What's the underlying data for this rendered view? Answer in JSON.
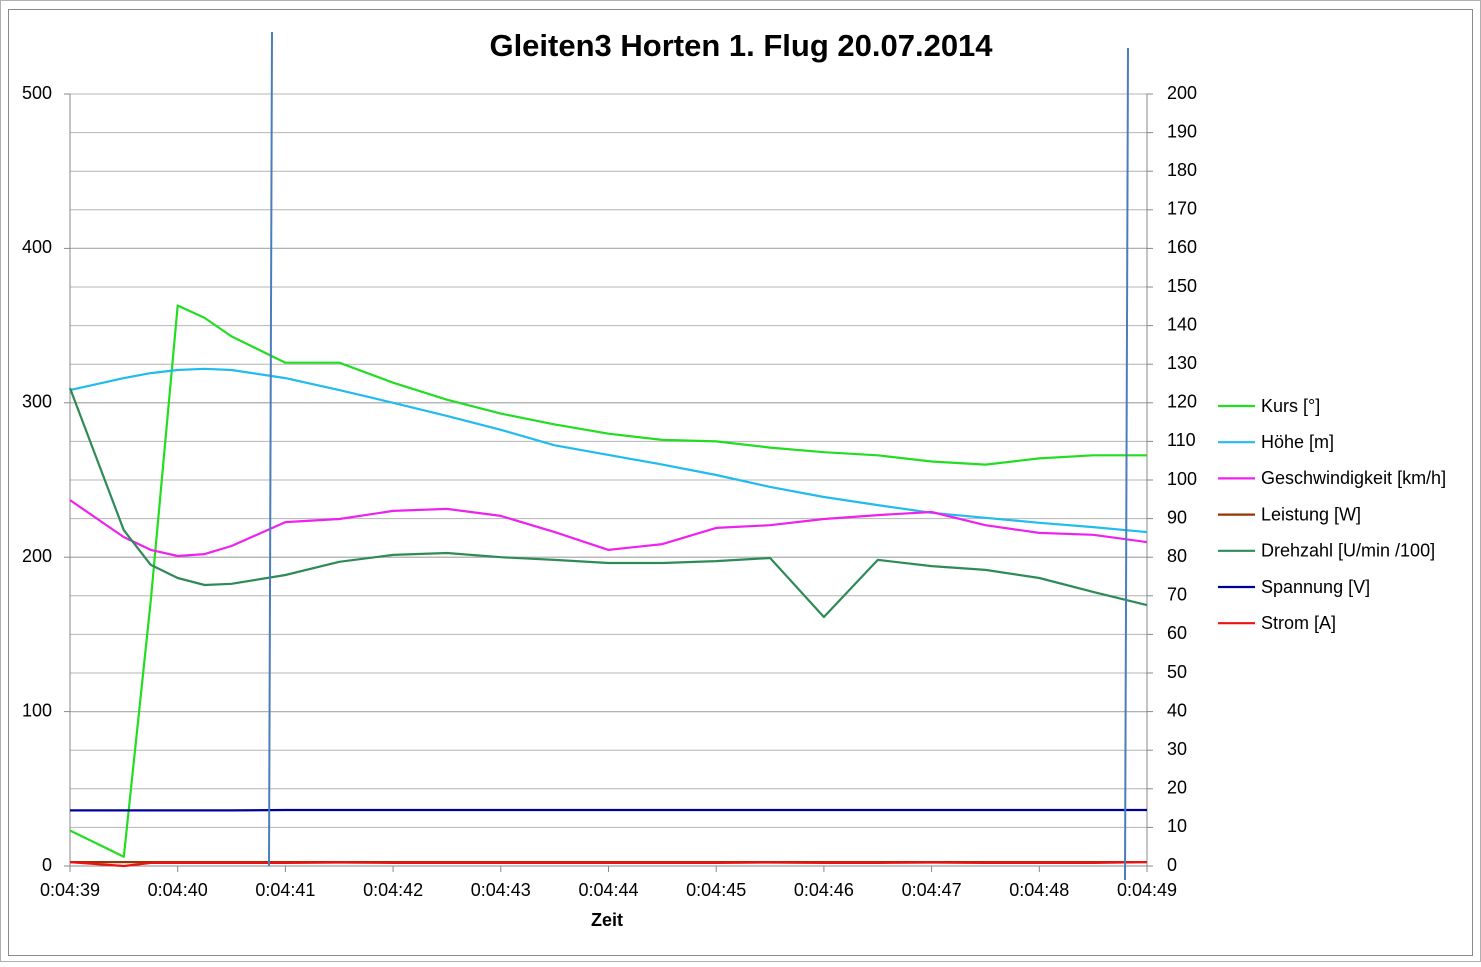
{
  "chart_data": {
    "type": "line",
    "title": "Gleiten3 Horten 1. Flug 20.07.2014",
    "x_label": "Zeit",
    "x": [
      279,
      279.5,
      279.75,
      280,
      280.25,
      280.5,
      281,
      281.5,
      282,
      282.5,
      283,
      283.5,
      284,
      284.5,
      285,
      285.5,
      286,
      286.5,
      287,
      287.5,
      288,
      288.5,
      289
    ],
    "xlim": [
      279,
      289
    ],
    "xticks": [
      {
        "value": 279,
        "label": "0:04:39"
      },
      {
        "value": 280,
        "label": "0:04:40"
      },
      {
        "value": 281,
        "label": "0:04:41"
      },
      {
        "value": 282,
        "label": "0:04:42"
      },
      {
        "value": 283,
        "label": "0:04:43"
      },
      {
        "value": 284,
        "label": "0:04:44"
      },
      {
        "value": 285,
        "label": "0:04:45"
      },
      {
        "value": 286,
        "label": "0:04:46"
      },
      {
        "value": 287,
        "label": "0:04:47"
      },
      {
        "value": 288,
        "label": "0:04:48"
      },
      {
        "value": 289,
        "label": "0:04:49"
      }
    ],
    "ylim": [
      0,
      500
    ],
    "yticks": [
      0,
      100,
      200,
      300,
      400,
      500
    ],
    "y2lim": [
      0,
      200
    ],
    "y2ticks": [
      0,
      10,
      20,
      30,
      40,
      50,
      60,
      70,
      80,
      90,
      100,
      110,
      120,
      130,
      140,
      150,
      160,
      170,
      180,
      190,
      200
    ],
    "grid": true,
    "legend": "right",
    "series": [
      {
        "name": "Kurs [°]",
        "color": "#22dd22",
        "axis": "y",
        "values": [
          23,
          6,
          172,
          363,
          355,
          343,
          326,
          326,
          313,
          302,
          293,
          286,
          280,
          276,
          275,
          271,
          268,
          266,
          262,
          260,
          264,
          266,
          266
        ]
      },
      {
        "name": "Höhe [m]",
        "color": "#22bbee",
        "axis": "y2",
        "values": [
          123.3,
          126.4,
          127.7,
          128.5,
          128.8,
          128.5,
          126.4,
          123.3,
          120,
          116.6,
          113,
          109,
          106.5,
          104,
          101.3,
          98.2,
          95.6,
          93.5,
          91.5,
          90.2,
          88.9,
          87.8,
          86.5
        ]
      },
      {
        "name": "Geschwindigkeit [km/h]",
        "color": "#ee22ee",
        "axis": "y2",
        "values": [
          94.8,
          85.2,
          81.9,
          80.3,
          80.8,
          82.9,
          89.1,
          89.9,
          92,
          92.5,
          90.7,
          86.5,
          81.9,
          83.4,
          87.6,
          88.3,
          89.9,
          90.9,
          91.7,
          88.3,
          86.3,
          85.8,
          83.9
        ]
      },
      {
        "name": "Leistung [W]",
        "color": "#993300",
        "axis": "y",
        "values": [
          2.5,
          2.5,
          2.5,
          2.5,
          2.5,
          2.5,
          2.5,
          2.5,
          2.5,
          2.5,
          2.5,
          2.5,
          2.5,
          2.5,
          2.5,
          2.5,
          2.5,
          2.5,
          2.5,
          2.5,
          2.5,
          2.5,
          2.5
        ]
      },
      {
        "name": "Drehzahl [U/min /100]",
        "color": "#2e8b57",
        "axis": "y2",
        "values": [
          123.8,
          87,
          78,
          74.6,
          72.8,
          73.1,
          75.4,
          78.8,
          80.6,
          81.1,
          80,
          79.3,
          78.5,
          78.5,
          79,
          79.8,
          64.5,
          79.3,
          77.7,
          76.7,
          74.6,
          71,
          67.6
        ]
      },
      {
        "name": "Spannung [V]",
        "color": "#000099",
        "axis": "y2",
        "values": [
          14.4,
          14.4,
          14.4,
          14.4,
          14.4,
          14.4,
          14.5,
          14.5,
          14.5,
          14.5,
          14.5,
          14.5,
          14.5,
          14.5,
          14.5,
          14.5,
          14.5,
          14.5,
          14.5,
          14.5,
          14.5,
          14.5,
          14.5
        ]
      },
      {
        "name": "Strom [A]",
        "color": "#ee1111",
        "axis": "y2",
        "values": [
          1,
          0,
          0.8,
          0.8,
          0.8,
          0.8,
          0.8,
          0.9,
          0.8,
          0.8,
          0.8,
          0.8,
          0.8,
          0.8,
          0.8,
          0.9,
          0.8,
          0.8,
          0.9,
          0.8,
          0.8,
          0.8,
          1
        ]
      }
    ]
  }
}
